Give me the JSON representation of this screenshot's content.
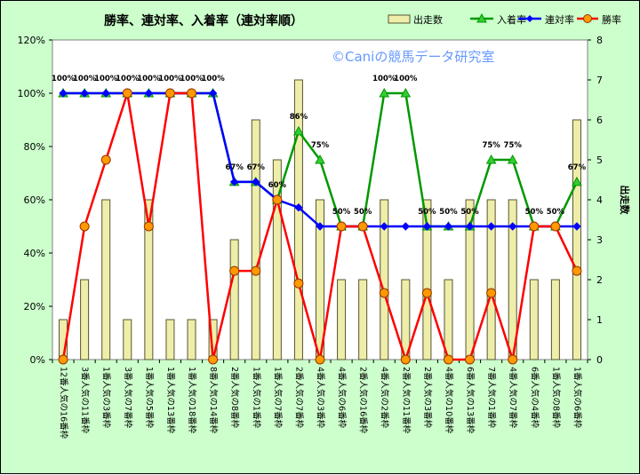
{
  "chart_data": {
    "type": "bar+line",
    "title": "勝率、連対率、入着率（連対率順）",
    "watermark": "©Caniの競馬データ研究室",
    "y2label": "出走数",
    "categories": [
      "12番人気の16番枠",
      "3番人気の11番枠",
      "1番人気の3番枠",
      "3番人気の7番枠",
      "1番人気の5番枠",
      "1番人気の13番枠",
      "1番人気の18番枠",
      "8番人気の14番枠",
      "2番人気の8番枠",
      "1番人気の1番枠",
      "1番人気の7番枠",
      "2番人気の7番枠",
      "4番人気の3番枠",
      "4番人気の6番枠",
      "2番人気の16番枠",
      "4番人気の2番枠",
      "2番人気の11番枠",
      "2番人気の3番枠",
      "4番人気の10番枠",
      "6番人気の13番枠",
      "7番人気の1番枠",
      "4番人気の7番枠",
      "6番人気の4番枠",
      "1番人気の8番枠",
      "1番人気の6番枠"
    ],
    "y1ticks": [
      "0%",
      "20%",
      "40%",
      "60%",
      "80%",
      "100%",
      "120%"
    ],
    "y2ticks": [
      "0",
      "1",
      "2",
      "3",
      "4",
      "5",
      "6",
      "7",
      "8"
    ],
    "ylim": [
      0,
      120
    ],
    "y2lim": [
      0,
      8
    ],
    "colors": {
      "bar_fill": "#eeeeaa",
      "bar_stroke": "#555533",
      "nyuchaku": "#009900",
      "rentai": "#0000ff",
      "shoritsu": "#ff0000",
      "win_marker": "#ff9900",
      "plot_bg": "#ffffff",
      "frame_bg": "#ccffcc"
    },
    "series": [
      {
        "name": "出走数",
        "kind": "bar",
        "axis": "right",
        "values": [
          1,
          2,
          4,
          1,
          4,
          1,
          1,
          1,
          3,
          6,
          5,
          7,
          4,
          2,
          2,
          4,
          2,
          4,
          2,
          4,
          4,
          4,
          2,
          2,
          6
        ]
      },
      {
        "name": "入着率",
        "kind": "line",
        "axis": "left",
        "values": [
          100,
          100,
          100,
          100,
          100,
          100,
          100,
          100,
          66.7,
          66.7,
          60,
          85.7,
          75,
          50,
          50,
          100,
          100,
          50,
          50,
          50,
          75,
          75,
          50,
          50,
          66.7
        ]
      },
      {
        "name": "連対率",
        "kind": "line",
        "axis": "left",
        "values": [
          100,
          100,
          100,
          100,
          100,
          100,
          100,
          100,
          66.7,
          66.7,
          60,
          57.1,
          50,
          50,
          50,
          50,
          50,
          50,
          50,
          50,
          50,
          50,
          50,
          50,
          50
        ]
      },
      {
        "name": "勝率",
        "kind": "line",
        "axis": "left",
        "values": [
          0,
          50,
          75,
          100,
          50,
          100,
          100,
          0,
          33.3,
          33.3,
          60,
          28.6,
          0,
          50,
          50,
          25,
          0,
          25,
          0,
          0,
          25,
          0,
          50,
          50,
          33.3
        ]
      }
    ],
    "data_labels": [
      "100%",
      "100%",
      "100%",
      "100%",
      "100%",
      "100%",
      "100%",
      "100%",
      "67%",
      "67%",
      "60%",
      "86%",
      "75%",
      "50%",
      "50%",
      "100%",
      "100%",
      "50%",
      "50%",
      "50%",
      "75%",
      "75%",
      "50%",
      "50%",
      "67%"
    ],
    "grid": false,
    "legend_position": "top-right"
  }
}
